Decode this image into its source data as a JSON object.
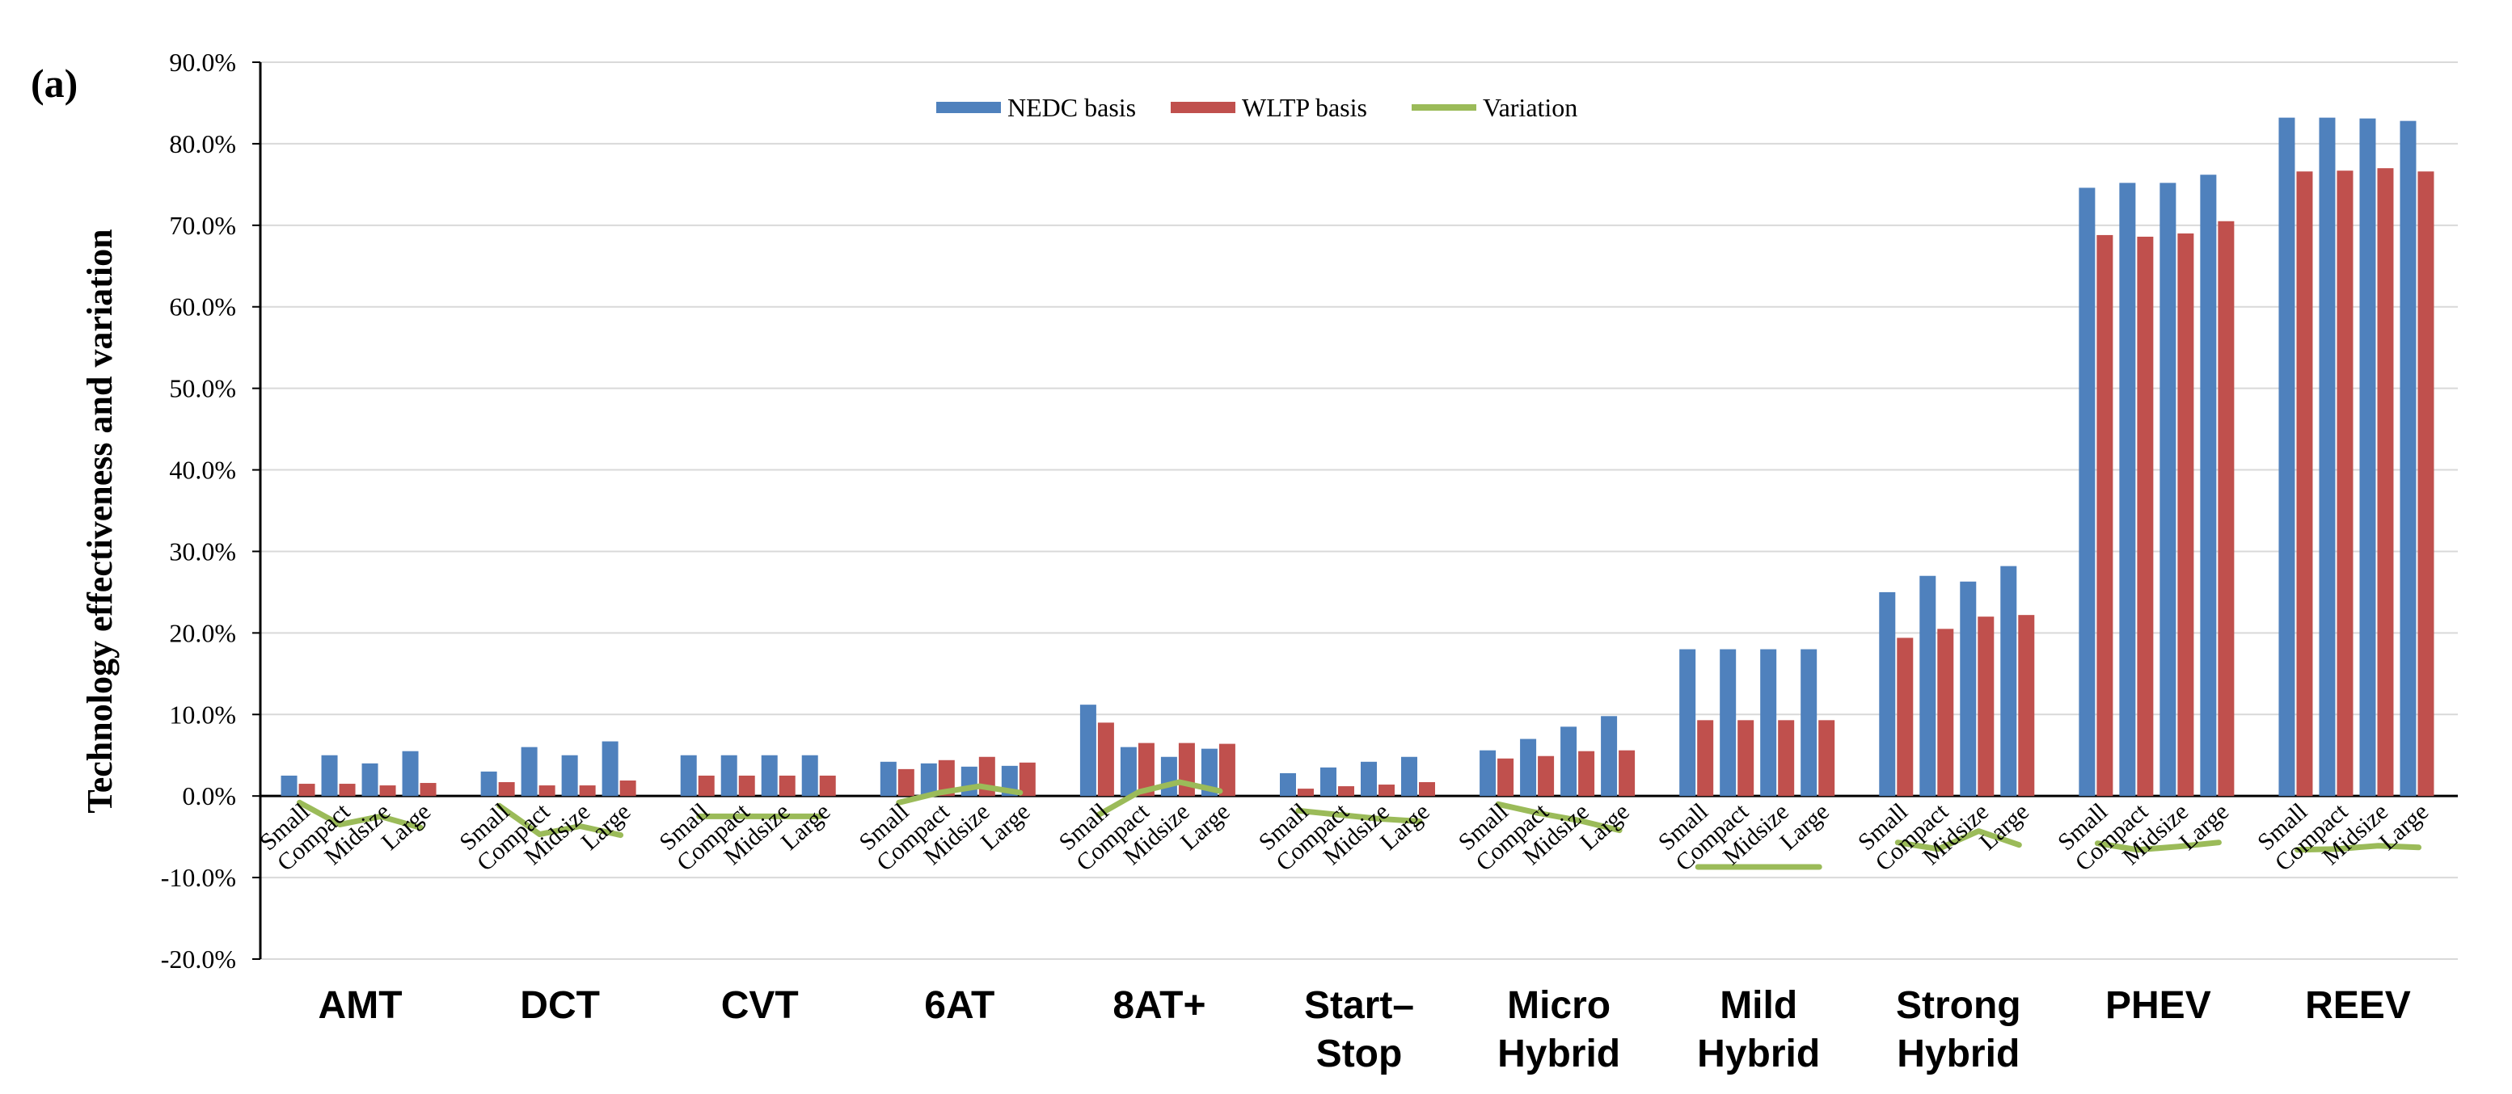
{
  "chart_data": {
    "type": "bar",
    "panel_label": "(a)",
    "ylabel": "Technology effectiveness and variation",
    "ylim": [
      -20,
      90
    ],
    "y_ticks": [
      "90.0%",
      "80.0%",
      "70.0%",
      "60.0%",
      "50.0%",
      "40.0%",
      "30.0%",
      "20.0%",
      "10.0%",
      "0.0%",
      "-10.0%",
      "-20.0%"
    ],
    "y_tick_values": [
      90,
      80,
      70,
      60,
      50,
      40,
      30,
      20,
      10,
      0,
      -10,
      -20
    ],
    "grid": true,
    "legend_position": "top-center",
    "vehicle_sizes": [
      "Small",
      "Compact",
      "Midsize",
      "Large"
    ],
    "groups": [
      {
        "label_lines": [
          "AMT"
        ]
      },
      {
        "label_lines": [
          "DCT"
        ]
      },
      {
        "label_lines": [
          "CVT"
        ]
      },
      {
        "label_lines": [
          "6AT"
        ]
      },
      {
        "label_lines": [
          "8AT+"
        ]
      },
      {
        "label_lines": [
          "Start–",
          "Stop"
        ]
      },
      {
        "label_lines": [
          "Micro",
          "Hybrid"
        ]
      },
      {
        "label_lines": [
          "Mild",
          "Hybrid"
        ]
      },
      {
        "label_lines": [
          "Strong",
          "Hybrid"
        ]
      },
      {
        "label_lines": [
          "PHEV"
        ]
      },
      {
        "label_lines": [
          "REEV"
        ]
      }
    ],
    "series": [
      {
        "name": "NEDC basis",
        "kind": "bar",
        "color": "#4F81BD",
        "values": [
          [
            2.5,
            5.0,
            4.0,
            5.5
          ],
          [
            3.0,
            6.0,
            5.0,
            6.7
          ],
          [
            5.0,
            5.0,
            5.0,
            5.0
          ],
          [
            4.2,
            4.0,
            3.6,
            3.7
          ],
          [
            11.2,
            6.0,
            4.8,
            5.8
          ],
          [
            2.8,
            3.5,
            4.2,
            4.8
          ],
          [
            5.6,
            7.0,
            8.5,
            9.8
          ],
          [
            18.0,
            18.0,
            18.0,
            18.0
          ],
          [
            25.0,
            27.0,
            26.3,
            28.2
          ],
          [
            74.6,
            75.2,
            75.2,
            76.2
          ],
          [
            83.2,
            83.2,
            83.1,
            82.8
          ]
        ]
      },
      {
        "name": "WLTP basis",
        "kind": "bar",
        "color": "#C0504D",
        "values": [
          [
            1.5,
            1.5,
            1.3,
            1.6
          ],
          [
            1.7,
            1.3,
            1.3,
            1.9
          ],
          [
            2.5,
            2.5,
            2.5,
            2.5
          ],
          [
            3.3,
            4.4,
            4.8,
            4.1
          ],
          [
            9.0,
            6.5,
            6.5,
            6.4
          ],
          [
            0.9,
            1.2,
            1.4,
            1.7
          ],
          [
            4.6,
            4.9,
            5.5,
            5.6
          ],
          [
            9.3,
            9.3,
            9.3,
            9.3
          ],
          [
            19.4,
            20.5,
            22.0,
            22.2
          ],
          [
            68.8,
            68.6,
            69.0,
            70.5
          ],
          [
            76.6,
            76.7,
            77.0,
            76.6
          ]
        ]
      },
      {
        "name": "Variation",
        "kind": "line",
        "color": "#9BBB59",
        "values": [
          [
            -0.8,
            -3.5,
            -2.5,
            -3.9
          ],
          [
            -1.2,
            -4.7,
            -3.7,
            -4.8
          ],
          [
            -2.5,
            -2.5,
            -2.5,
            -2.5
          ],
          [
            -0.8,
            0.4,
            1.2,
            0.4
          ],
          [
            -2.3,
            0.5,
            1.7,
            0.6
          ],
          [
            -1.8,
            -2.3,
            -2.8,
            -3.1
          ],
          [
            -1.0,
            -2.1,
            -3.0,
            -4.2
          ],
          [
            -8.7,
            -8.7,
            -8.7,
            -8.7
          ],
          [
            -5.7,
            -6.5,
            -4.3,
            -6.0
          ],
          [
            -5.8,
            -6.6,
            -6.2,
            -5.7
          ],
          [
            -6.6,
            -6.5,
            -6.1,
            -6.3
          ]
        ]
      }
    ]
  }
}
